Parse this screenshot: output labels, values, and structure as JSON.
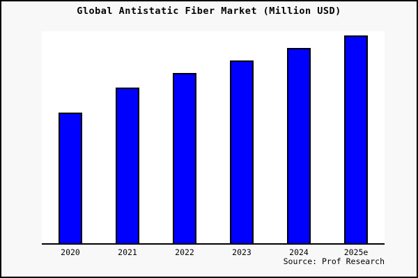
{
  "figure": {
    "frame_border_color": "#000000",
    "outer_background": "#f8f8f8",
    "plot_background": "#ffffff"
  },
  "chart_data": {
    "type": "bar",
    "title": "Global Antistatic Fiber Market (Million USD)",
    "categories": [
      "2020",
      "2021",
      "2022",
      "2023",
      "2024",
      "2025e"
    ],
    "values": [
      0.63,
      0.75,
      0.82,
      0.88,
      0.94,
      1.0
    ],
    "value_scale": "relative height, tallest bar = 1.0 (no y-axis tick labels shown in figure)",
    "ylim": [
      0,
      1.02
    ],
    "xlabel": "",
    "ylabel": "",
    "grid": false,
    "legend_position": "none",
    "y_axis_visible": false,
    "x_axis_line_visible": true,
    "bar_color": "#0000ff",
    "bar_edge_color": "#000000",
    "axis_color": "#000000",
    "annotation": "Source: Prof Research"
  }
}
